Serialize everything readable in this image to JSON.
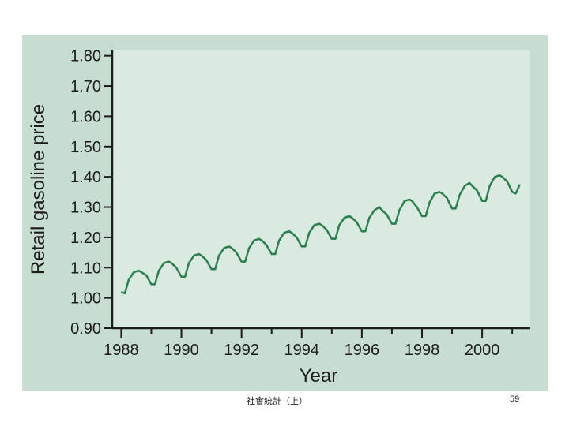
{
  "chart_data": {
    "type": "line",
    "title": "",
    "xlabel": "Year",
    "ylabel": "Retail gasoline price",
    "xlim": [
      1987.7,
      2001.6
    ],
    "ylim": [
      0.9,
      1.82
    ],
    "grid": false,
    "x_ticks": [
      1988,
      1990,
      1992,
      1994,
      1996,
      1998,
      2000
    ],
    "x_tick_labels": [
      "1988",
      "1990",
      "1992",
      "1994",
      "1996",
      "1998",
      "2000"
    ],
    "y_ticks": [
      0.9,
      1.0,
      1.1,
      1.2,
      1.3,
      1.4,
      1.5,
      1.6,
      1.7,
      1.8
    ],
    "y_tick_labels": [
      "0.90",
      "1.00",
      "1.10",
      "1.20",
      "1.30",
      "1.40",
      "1.50",
      "1.60",
      "1.70",
      "1.80"
    ],
    "series": [
      {
        "name": "Retail gasoline price",
        "color": "#2e7d4f",
        "x": [
          1988.0,
          1988.12,
          1988.25,
          1988.42,
          1988.58,
          1988.67,
          1988.83,
          1989.0,
          1989.12,
          1989.25,
          1989.42,
          1989.58,
          1989.67,
          1989.83,
          1990.0,
          1990.12,
          1990.25,
          1990.42,
          1990.58,
          1990.67,
          1990.83,
          1991.0,
          1991.12,
          1991.25,
          1991.42,
          1991.58,
          1991.67,
          1991.83,
          1992.0,
          1992.12,
          1992.25,
          1992.42,
          1992.58,
          1992.67,
          1992.83,
          1993.0,
          1993.12,
          1993.25,
          1993.42,
          1993.58,
          1993.67,
          1993.83,
          1994.0,
          1994.12,
          1994.25,
          1994.42,
          1994.58,
          1994.67,
          1994.83,
          1995.0,
          1995.12,
          1995.25,
          1995.42,
          1995.58,
          1995.67,
          1995.83,
          1996.0,
          1996.12,
          1996.25,
          1996.42,
          1996.58,
          1996.67,
          1996.83,
          1997.0,
          1997.12,
          1997.25,
          1997.42,
          1997.58,
          1997.67,
          1997.83,
          1998.0,
          1998.12,
          1998.25,
          1998.42,
          1998.58,
          1998.67,
          1998.83,
          1999.0,
          1999.12,
          1999.25,
          1999.42,
          1999.58,
          1999.67,
          1999.83,
          2000.0,
          2000.12,
          2000.25,
          2000.42,
          2000.58,
          2000.67,
          2000.83,
          2001.0,
          2001.12,
          2001.25
        ],
        "values": [
          1.02,
          1.015,
          1.06,
          1.085,
          1.09,
          1.085,
          1.075,
          1.045,
          1.045,
          1.09,
          1.115,
          1.12,
          1.115,
          1.1,
          1.07,
          1.07,
          1.115,
          1.14,
          1.145,
          1.14,
          1.125,
          1.095,
          1.095,
          1.14,
          1.165,
          1.17,
          1.165,
          1.15,
          1.12,
          1.12,
          1.165,
          1.19,
          1.195,
          1.19,
          1.175,
          1.145,
          1.145,
          1.19,
          1.215,
          1.22,
          1.215,
          1.2,
          1.17,
          1.17,
          1.215,
          1.24,
          1.245,
          1.24,
          1.225,
          1.195,
          1.195,
          1.24,
          1.265,
          1.27,
          1.265,
          1.25,
          1.22,
          1.22,
          1.265,
          1.29,
          1.3,
          1.29,
          1.275,
          1.245,
          1.245,
          1.29,
          1.32,
          1.325,
          1.32,
          1.3,
          1.27,
          1.27,
          1.315,
          1.345,
          1.35,
          1.345,
          1.33,
          1.295,
          1.295,
          1.34,
          1.37,
          1.38,
          1.37,
          1.355,
          1.32,
          1.32,
          1.37,
          1.4,
          1.405,
          1.4,
          1.385,
          1.35,
          1.345,
          1.375
        ]
      }
    ]
  },
  "footer": {
    "left_text": "社會統計（上）",
    "page_number": "59"
  }
}
